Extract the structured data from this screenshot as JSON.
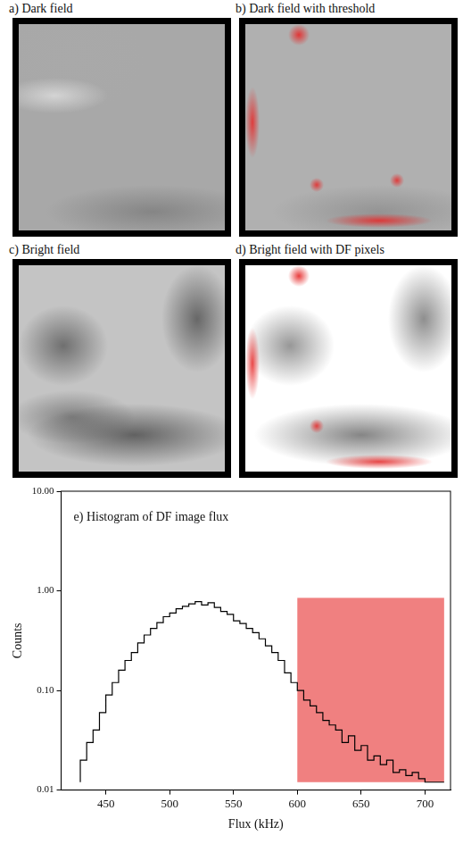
{
  "panels": [
    {
      "title": "a) Dark field"
    },
    {
      "title": "b) Dark field with threshold"
    },
    {
      "title": "c) Bright field"
    },
    {
      "title": "d) Bright field with DF pixels"
    }
  ],
  "chart_data": {
    "type": "histogram",
    "title": "e) Histogram of DF image flux",
    "x_label": "Flux (kHz)",
    "y_label": "Counts",
    "bins": [
      430,
      435,
      440,
      445,
      450,
      455,
      460,
      465,
      470,
      475,
      480,
      485,
      490,
      495,
      500,
      505,
      510,
      515,
      520,
      525,
      530,
      535,
      540,
      545,
      550,
      555,
      560,
      565,
      570,
      575,
      580,
      585,
      590,
      595,
      600,
      605,
      610,
      615,
      620,
      625,
      630,
      635,
      640,
      645,
      650,
      655,
      660,
      665,
      670,
      675,
      680,
      685,
      690,
      695,
      700,
      705,
      710,
      715
    ],
    "values": [
      0.012,
      0.02,
      0.03,
      0.04,
      0.06,
      0.09,
      0.12,
      0.16,
      0.2,
      0.24,
      0.3,
      0.36,
      0.42,
      0.48,
      0.55,
      0.6,
      0.66,
      0.7,
      0.74,
      0.78,
      0.72,
      0.76,
      0.68,
      0.62,
      0.58,
      0.5,
      0.47,
      0.42,
      0.38,
      0.33,
      0.28,
      0.24,
      0.2,
      0.15,
      0.12,
      0.1,
      0.08,
      0.07,
      0.06,
      0.05,
      0.045,
      0.04,
      0.03,
      0.035,
      0.025,
      0.028,
      0.02,
      0.022,
      0.018,
      0.02,
      0.015,
      0.016,
      0.014,
      0.015,
      0.013,
      0.012,
      0.012
    ],
    "color": "#000000",
    "shaded_region": {
      "x": [
        600,
        715
      ],
      "y": [
        0.012,
        0.85
      ],
      "color": "#f08080"
    },
    "xlim": [
      415,
      720
    ],
    "xticks": [
      450,
      500,
      550,
      600,
      650,
      700
    ],
    "ylim": [
      0.01,
      10
    ],
    "yticks": [
      {
        "value": 0.01,
        "label": "0.01"
      },
      {
        "value": 0.1,
        "label": "0.10"
      },
      {
        "value": 1,
        "label": "1.00"
      },
      {
        "value": 10,
        "label": "10.00"
      }
    ],
    "log": "y",
    "grid": false
  }
}
